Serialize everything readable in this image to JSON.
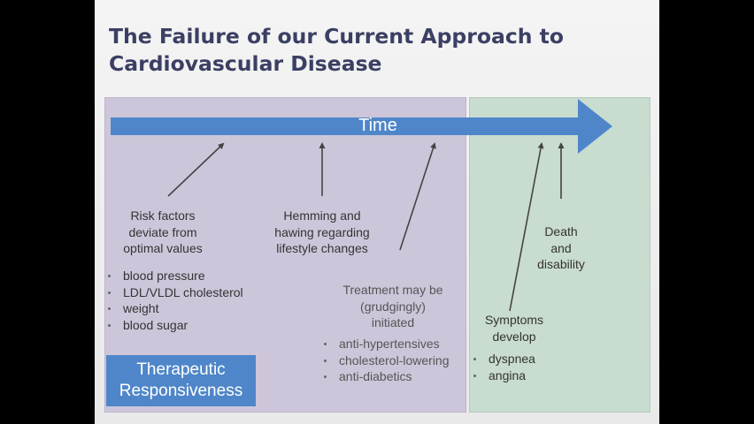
{
  "slide": {
    "title_lines": [
      "The Failure of our Current Approach to",
      "Cardiovascular Disease"
    ],
    "timeline": {
      "label": "Time",
      "color": "#4f86c9"
    },
    "risk_factors": {
      "lines": [
        "Risk factors",
        "deviate from",
        "optimal values"
      ],
      "bullets": [
        "blood pressure",
        "LDL/VLDL cholesterol",
        "weight",
        "blood sugar"
      ]
    },
    "hemming": {
      "lines": [
        "Hemming and",
        "hawing regarding",
        "lifestyle changes"
      ]
    },
    "treatment": {
      "lines": [
        "Treatment may be",
        "(grudgingly)",
        "initiated"
      ],
      "bullets": [
        "anti-hypertensives",
        "cholesterol-lowering",
        "anti-diabetics"
      ]
    },
    "symptoms": {
      "lines": [
        "Symptoms",
        "develop"
      ],
      "bullets": [
        "dyspnea",
        "angina"
      ]
    },
    "death": {
      "lines": [
        "Death",
        "and",
        "disability"
      ]
    },
    "therapeutic": {
      "lines": [
        "Therapeutic",
        "Responsiveness"
      ],
      "color": "#4f86c9"
    },
    "colors": {
      "title": "#3b3f63",
      "panel_left": "#cdc6da",
      "panel_right": "#c8dccf"
    }
  }
}
